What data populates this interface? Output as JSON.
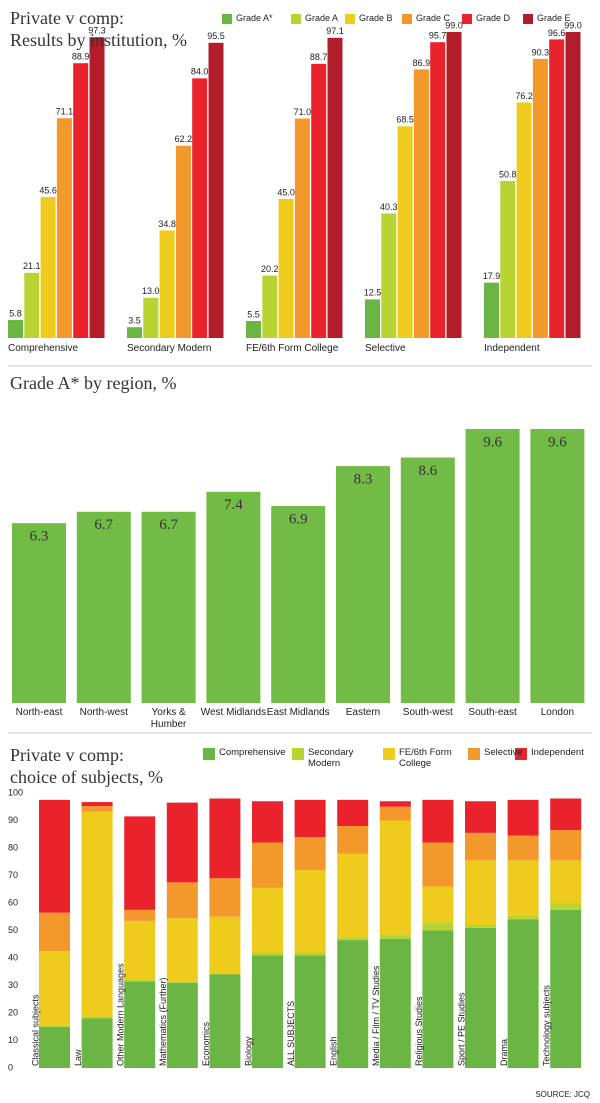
{
  "chart_data": [
    {
      "type": "grouped_bar",
      "title": "Private v comp:\nResults by institution, %",
      "categories": [
        "Comprehensive",
        "Secondary Modern",
        "FE/6th Form College",
        "Selective",
        "Independent"
      ],
      "series": [
        {
          "name": "Grade A*",
          "color": "#6bb544",
          "values": [
            5.8,
            3.5,
            5.5,
            12.5,
            17.9
          ],
          "value_labels": [
            "5.8",
            "3.5",
            "5.5",
            "12.5",
            "17.9"
          ]
        },
        {
          "name": "Grade A",
          "color": "#b7d433",
          "values": [
            21.1,
            13.0,
            20.2,
            40.3,
            50.8
          ],
          "value_labels": [
            "21.1",
            "13.0",
            "20.2",
            "40.3",
            "50.8"
          ]
        },
        {
          "name": "Grade B",
          "color": "#eecb1d",
          "values": [
            45.6,
            34.8,
            45.0,
            68.5,
            76.2
          ],
          "value_labels": [
            "45.6",
            "34.8",
            "45.0",
            "68.5",
            "76.2"
          ]
        },
        {
          "name": "Grade C",
          "color": "#f3982a",
          "values": [
            71.1,
            62.2,
            71.0,
            86.9,
            90.3
          ],
          "value_labels": [
            "71.1",
            "62.2",
            "71.0",
            "86.9",
            "90.3"
          ]
        },
        {
          "name": "Grade D",
          "color": "#e9222c",
          "values": [
            88.9,
            84.0,
            88.7,
            95.7,
            96.6
          ],
          "value_labels": [
            "88.9",
            "84.0",
            "88.7",
            "95.7",
            "96.6"
          ]
        },
        {
          "name": "Grade E",
          "color": "#b11d2b",
          "values": [
            97.3,
            95.5,
            97.1,
            99.0,
            99.0
          ],
          "value_labels": [
            "97.3",
            "95.5",
            "97.1",
            "99.0",
            "99.0"
          ]
        }
      ]
    },
    {
      "type": "bar",
      "title": "Grade A* by region, %",
      "categories": [
        "North-east",
        "North-west",
        "Yorks & Humber",
        "West Midlands",
        "East Midlands",
        "Eastern",
        "South-west",
        "South-east",
        "London"
      ],
      "values": [
        6.3,
        6.7,
        6.7,
        7.4,
        6.9,
        8.3,
        8.6,
        9.6,
        9.6
      ],
      "color": "#72bb47"
    },
    {
      "type": "stacked_bar",
      "title": "Private v comp:\nchoice of subjects, %",
      "categories": [
        "Classical subjects",
        "Law",
        "Other Modern Languages",
        "Mathematics (Further)",
        "Economics",
        "Biology",
        "ALL SUBJECTS",
        "English",
        "Media / Film / TV Studies",
        "Religious Studies",
        "Sport / PE Studies",
        "Drama",
        "Technology subjects"
      ],
      "series": [
        {
          "name": "Comprehensive",
          "color": "#6bb544",
          "values": [
            15,
            18,
            31.5,
            31,
            34,
            41,
            41,
            46.5,
            47,
            50,
            51,
            54,
            57.5
          ]
        },
        {
          "name": "Secondary Modern",
          "color": "#b7d433",
          "values": [
            0.5,
            0.7,
            0.5,
            0.5,
            0.5,
            1,
            1,
            1,
            1.5,
            3,
            1,
            1.5,
            2.5
          ]
        },
        {
          "name": "FE/6th Form College",
          "color": "#eecb1d",
          "values": [
            27,
            74.5,
            21.5,
            23,
            20.5,
            23.5,
            30,
            30.5,
            41.5,
            13,
            23.5,
            20,
            15.5
          ]
        },
        {
          "name": "Selective",
          "color": "#f3982a",
          "values": [
            14,
            2,
            4,
            13,
            14,
            16.5,
            12,
            10,
            5,
            16,
            10,
            9,
            11
          ]
        },
        {
          "name": "Independent",
          "color": "#e9222c",
          "values": [
            41,
            1.5,
            34,
            29,
            29,
            15,
            13.5,
            9.5,
            2,
            15.5,
            11.5,
            13,
            11.5
          ]
        }
      ],
      "ylim": [
        0,
        100
      ],
      "yticks": [
        0,
        10,
        20,
        30,
        40,
        50,
        60,
        70,
        80,
        90,
        100
      ],
      "source": "SOURCE: JCQ"
    }
  ]
}
